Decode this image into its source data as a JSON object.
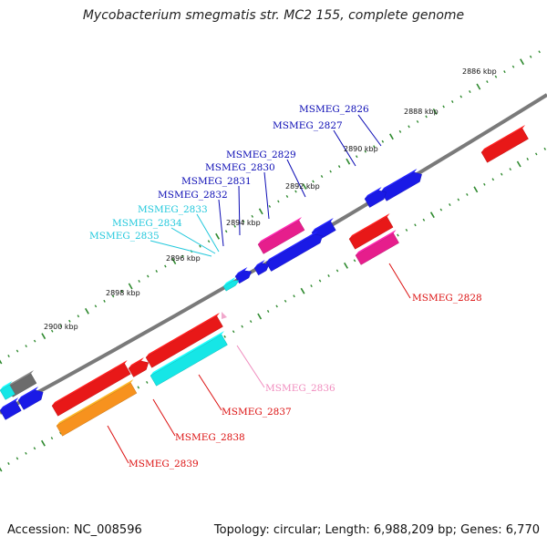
{
  "title": "Mycobacterium smegmatis str. MC2 155, complete genome",
  "footer": {
    "accession": "Accession: NC_008596",
    "summary": "Topology: circular; Length: 6,988,209 bp; Genes: 6,770"
  },
  "colors": {
    "backbone": "#7a7a7a",
    "tick": "#2f8a2f",
    "red": "#e81818",
    "blue": "#1a1ae6",
    "magenta": "#e61e8c",
    "cyan": "#16e6e6",
    "orange": "#f7921e",
    "pink": "#f0a8cc",
    "gray": "#6c6c6c",
    "label_blue": "#0a0ab4",
    "label_cyan": "#22c8dc",
    "label_red": "#dc1010",
    "label_pink": "#f08cbe"
  },
  "kbp_labels": [
    "2886 kbp",
    "2888 kbp",
    "2890 kbp",
    "2892 kbp",
    "2894 kbp",
    "2896 kbp",
    "2898 kbp",
    "2900 kbp"
  ],
  "genes": [
    {
      "name": "MSMEG_2826",
      "color": "label_blue"
    },
    {
      "name": "MSMEG_2827",
      "color": "label_blue"
    },
    {
      "name": "MSMEG_2829",
      "color": "label_blue"
    },
    {
      "name": "MSMEG_2830",
      "color": "label_blue"
    },
    {
      "name": "MSMEG_2831",
      "color": "label_blue"
    },
    {
      "name": "MSMEG_2832",
      "color": "label_blue"
    },
    {
      "name": "MSMEG_2833",
      "color": "label_cyan"
    },
    {
      "name": "MSMEG_2834",
      "color": "label_cyan"
    },
    {
      "name": "MSMEG_2835",
      "color": "label_cyan"
    },
    {
      "name": "MSMEG_2828",
      "color": "label_red"
    },
    {
      "name": "MSMEG_2836",
      "color": "label_pink"
    },
    {
      "name": "MSMEG_2837",
      "color": "label_red"
    },
    {
      "name": "MSMEG_2838",
      "color": "label_red"
    },
    {
      "name": "MSMEG_2839",
      "color": "label_red"
    }
  ]
}
